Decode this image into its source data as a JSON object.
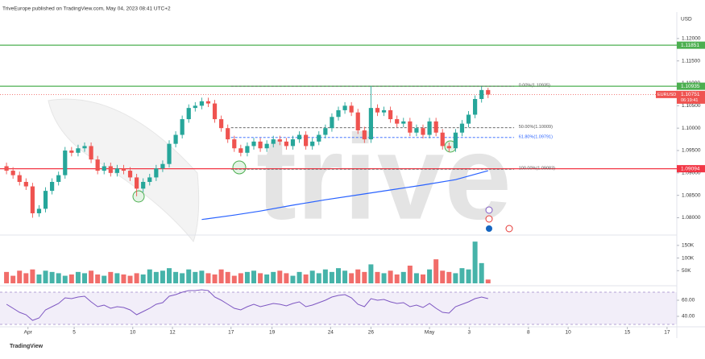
{
  "header": "TriveEurope published on TradingView.com, May 04, 2023 08:41 UTC+2",
  "footer": "TradingView",
  "watermark": "trive",
  "chart_data": {
    "type": "candlestick",
    "symbol": "EURUSD",
    "currency": "USD",
    "countdown": "06:19:41",
    "last_price": 1.10751,
    "up_color": "#26a69a",
    "down_color": "#ef5350",
    "x": [
      1,
      2,
      3,
      4,
      5,
      6,
      7,
      8,
      9,
      10,
      11,
      12,
      13,
      14,
      15,
      16,
      17,
      18,
      19,
      20,
      21,
      22,
      23,
      24,
      25,
      26,
      27,
      28,
      29,
      30,
      31,
      32,
      33,
      34,
      35,
      36,
      37,
      38,
      39,
      40,
      41,
      42,
      43,
      44,
      45,
      46,
      47,
      48,
      49,
      50,
      51,
      52,
      53,
      54,
      55,
      56,
      57,
      58,
      59,
      60,
      61,
      62,
      63,
      64,
      65,
      66,
      67,
      68,
      69,
      70,
      71,
      72,
      73,
      74,
      75
    ],
    "open": [
      1.0915,
      1.0905,
      1.0895,
      1.088,
      1.087,
      1.081,
      1.082,
      1.086,
      1.088,
      1.0895,
      1.095,
      1.0945,
      1.0955,
      1.096,
      1.093,
      1.0905,
      1.0915,
      1.09,
      1.091,
      1.0905,
      1.089,
      1.0865,
      1.088,
      1.089,
      1.091,
      1.092,
      1.0965,
      1.0985,
      1.102,
      1.1045,
      1.105,
      1.106,
      1.1055,
      1.102,
      1.1,
      1.0975,
      1.0955,
      1.0945,
      1.096,
      1.097,
      1.0955,
      1.0965,
      1.0975,
      1.097,
      1.096,
      1.0975,
      1.0985,
      1.096,
      1.097,
      1.0985,
      1.1,
      1.1025,
      1.104,
      1.105,
      1.1035,
      1.0995,
      1.0975,
      1.1045,
      1.1035,
      1.104,
      1.102,
      1.101,
      1.1015,
      1.099,
      1.1,
      1.0985,
      1.1015,
      1.099,
      1.096,
      1.0955,
      1.099,
      1.101,
      1.103,
      1.1065,
      1.1085
    ],
    "high": [
      1.0923,
      1.0913,
      1.0903,
      1.0888,
      1.0878,
      1.0828,
      1.0868,
      1.0888,
      1.0903,
      1.0958,
      1.0958,
      1.0963,
      1.0968,
      1.0968,
      1.0938,
      1.0923,
      1.0923,
      1.0918,
      1.0918,
      1.0913,
      1.0898,
      1.0888,
      1.0898,
      1.0918,
      1.0928,
      1.0973,
      1.0993,
      1.1028,
      1.1053,
      1.1058,
      1.1068,
      1.1068,
      1.1063,
      1.1028,
      1.1008,
      1.0983,
      1.0963,
      1.0968,
      1.0978,
      1.0978,
      1.0973,
      1.0983,
      1.0983,
      1.0978,
      1.0983,
      1.0993,
      1.0993,
      1.0978,
      1.0993,
      1.1008,
      1.1033,
      1.1048,
      1.1058,
      1.1058,
      1.1043,
      1.1003,
      1.1094,
      1.1053,
      1.1048,
      1.1048,
      1.1028,
      1.1023,
      1.1023,
      1.1008,
      1.1008,
      1.1023,
      1.1023,
      1.0998,
      1.0968,
      1.0998,
      1.1018,
      1.1038,
      1.1073,
      1.1093,
      1.109
    ],
    "low": [
      1.0897,
      1.0887,
      1.0872,
      1.0862,
      1.08,
      1.0802,
      1.0812,
      1.0852,
      1.0872,
      1.0887,
      1.0937,
      1.0937,
      1.0947,
      1.0922,
      1.0897,
      1.0897,
      1.0892,
      1.0892,
      1.0897,
      1.0882,
      1.0848,
      1.0857,
      1.0872,
      1.0882,
      1.0902,
      1.0912,
      1.0957,
      1.0977,
      1.1012,
      1.1037,
      1.1042,
      1.1047,
      1.1012,
      1.0992,
      1.0967,
      1.0947,
      1.0937,
      1.0937,
      1.0952,
      1.0947,
      1.0947,
      1.0957,
      1.0962,
      1.0952,
      1.0952,
      1.0967,
      1.0952,
      1.0952,
      1.0962,
      1.0977,
      1.0992,
      1.1017,
      1.1032,
      1.1027,
      1.0987,
      1.0967,
      1.0967,
      1.1027,
      1.1027,
      1.1012,
      1.1002,
      1.1002,
      1.0982,
      1.0982,
      1.0977,
      1.0977,
      1.0982,
      1.0952,
      1.0947,
      1.0947,
      1.0982,
      1.1002,
      1.1022,
      1.1057,
      1.1067
    ],
    "close": [
      1.0905,
      1.0895,
      1.088,
      1.087,
      1.081,
      1.082,
      1.086,
      1.088,
      1.0895,
      1.095,
      1.0945,
      1.0955,
      1.096,
      1.093,
      1.0905,
      1.0915,
      1.09,
      1.091,
      1.0905,
      1.089,
      1.0865,
      1.088,
      1.089,
      1.091,
      1.092,
      1.0965,
      1.0985,
      1.102,
      1.1045,
      1.105,
      1.106,
      1.1055,
      1.102,
      1.1,
      1.0975,
      1.0955,
      1.0945,
      1.096,
      1.097,
      1.0955,
      1.0965,
      1.0975,
      1.097,
      1.096,
      1.0975,
      1.0985,
      1.096,
      1.097,
      1.0985,
      1.1,
      1.1025,
      1.104,
      1.105,
      1.1035,
      1.0995,
      1.0975,
      1.1045,
      1.1035,
      1.104,
      1.102,
      1.101,
      1.1015,
      1.099,
      1.1,
      1.0985,
      1.1015,
      1.099,
      1.096,
      1.0955,
      1.099,
      1.101,
      1.103,
      1.1065,
      1.1085,
      1.1075
    ],
    "xlim": [
      0,
      104
    ],
    "xticks": [
      {
        "value": 4.3,
        "label": "Apr"
      },
      {
        "value": 11.4,
        "label": "5"
      },
      {
        "value": 20.4,
        "label": "10"
      },
      {
        "value": 26.5,
        "label": "12"
      },
      {
        "value": 35.5,
        "label": "17"
      },
      {
        "value": 41.8,
        "label": "19"
      },
      {
        "value": 50.8,
        "label": "24"
      },
      {
        "value": 57,
        "label": "26"
      },
      {
        "value": 66,
        "label": "May"
      },
      {
        "value": 72.1,
        "label": "3"
      },
      {
        "value": 81.2,
        "label": "8"
      },
      {
        "value": 87.3,
        "label": "10"
      },
      {
        "value": 96.4,
        "label": "15"
      },
      {
        "value": 102.5,
        "label": "17"
      }
    ],
    "ylim": [
      1.0765,
      1.1259
    ],
    "yticks": [
      {
        "value": 1.12,
        "label": "1.12000"
      },
      {
        "value": 1.115,
        "label": "1.11500"
      },
      {
        "value": 1.11,
        "label": "1.11000"
      },
      {
        "value": 1.105,
        "label": "1.10500"
      },
      {
        "value": 1.1,
        "label": "1.10000"
      },
      {
        "value": 1.095,
        "label": "1.09500"
      },
      {
        "value": 1.09,
        "label": "1.09000"
      },
      {
        "value": 1.085,
        "label": "1.08500"
      },
      {
        "value": 1.08,
        "label": "1.08000"
      }
    ],
    "levels": [
      {
        "value": 1.11851,
        "color": "#4caf50"
      },
      {
        "value": 1.10935,
        "color": "#4caf50"
      },
      {
        "value": 1.09094,
        "color": "#f23645"
      }
    ],
    "fib": [
      {
        "value": 1.10935,
        "label": "0.00%(1.10935)",
        "color": "#555555"
      },
      {
        "value": 1.10009,
        "label": "50.00%(1.10009)",
        "color": "#555555"
      },
      {
        "value": 1.09791,
        "label": "61.80%(1.09791)",
        "color": "#2962ff"
      },
      {
        "value": 1.09083,
        "label": "100.00%(1.09083)",
        "color": "#555555"
      }
    ],
    "ma": {
      "color": "#2962ff",
      "x": [
        31,
        36,
        40,
        45,
        50,
        55,
        60,
        65,
        70,
        75
      ],
      "values": [
        1.0796,
        1.0806,
        1.0815,
        1.0828,
        1.084,
        1.0851,
        1.0862,
        1.0873,
        1.0885,
        1.0905
      ]
    },
    "volume": {
      "ylim": [
        0,
        175000
      ],
      "yticks": [
        {
          "value": 50000,
          "label": "50K"
        },
        {
          "value": 100000,
          "label": "100K"
        },
        {
          "value": 150000,
          "label": "150K"
        }
      ],
      "values": [
        45000,
        30000,
        50000,
        40000,
        55000,
        35000,
        50000,
        45000,
        40000,
        30000,
        35000,
        45000,
        40000,
        50000,
        35000,
        30000,
        45000,
        40000,
        35000,
        30000,
        40000,
        35000,
        55000,
        45000,
        50000,
        60000,
        45000,
        40000,
        55000,
        45000,
        50000,
        40000,
        35000,
        55000,
        45000,
        30000,
        40000,
        45000,
        50000,
        40000,
        35000,
        45000,
        50000,
        40000,
        30000,
        45000,
        35000,
        50000,
        40000,
        55000,
        45000,
        60000,
        50000,
        40000,
        55000,
        45000,
        75000,
        45000,
        40000,
        50000,
        35000,
        45000,
        70000,
        40000,
        35000,
        55000,
        95000,
        50000,
        45000,
        40000,
        60000,
        55000,
        165000,
        80000,
        15000
      ]
    },
    "rsi": {
      "color": "#7e57c2",
      "ylim": [
        28,
        75
      ],
      "band": [
        30,
        70
      ],
      "yticks": [
        {
          "value": 40,
          "label": "40.00"
        },
        {
          "value": 60,
          "label": "60.00"
        }
      ],
      "values": [
        55,
        50,
        45,
        42,
        35,
        38,
        48,
        52,
        56,
        63,
        62,
        64,
        65,
        58,
        52,
        54,
        50,
        52,
        51,
        48,
        42,
        46,
        50,
        55,
        57,
        65,
        67,
        70,
        72,
        72,
        73,
        72,
        64,
        60,
        55,
        50,
        48,
        52,
        55,
        52,
        54,
        56,
        55,
        53,
        56,
        58,
        52,
        54,
        57,
        60,
        64,
        66,
        67,
        63,
        55,
        52,
        62,
        60,
        61,
        58,
        56,
        57,
        52,
        54,
        51,
        56,
        50,
        45,
        44,
        52,
        55,
        58,
        62,
        64,
        62
      ]
    }
  }
}
